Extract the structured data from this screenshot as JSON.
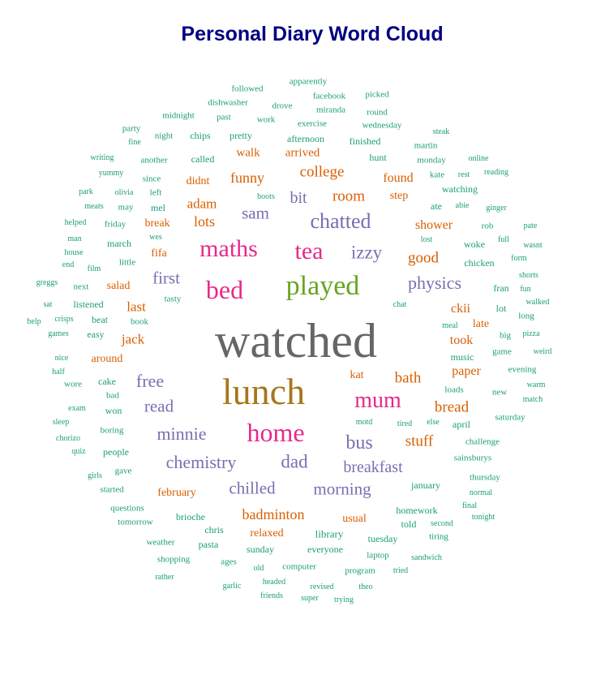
{
  "title": "Personal Diary Word Cloud",
  "colors": {
    "title": "#000080",
    "tier1": "#666666",
    "tier2": "#A6761D",
    "tier3": "#E7298A",
    "tier4": "#66A61E",
    "tier5": "#7570B3",
    "tier6": "#D95F02",
    "tier7": "#1B9E77"
  },
  "words": [
    {
      "text": "watched",
      "tier": "tier1"
    },
    {
      "text": "lunch",
      "tier": "tier2"
    },
    {
      "text": "played",
      "tier": "tier4"
    },
    {
      "text": "home",
      "tier": "tier3"
    },
    {
      "text": "bed",
      "tier": "tier3"
    },
    {
      "text": "maths",
      "tier": "tier3"
    },
    {
      "text": "tea",
      "tier": "tier3"
    },
    {
      "text": "mum",
      "tier": "tier3"
    },
    {
      "text": "chatted",
      "tier": "tier5"
    },
    {
      "text": "izzy",
      "tier": "tier5"
    },
    {
      "text": "physics",
      "tier": "tier5"
    },
    {
      "text": "bus",
      "tier": "tier5"
    },
    {
      "text": "minnie",
      "tier": "tier5"
    },
    {
      "text": "chemistry",
      "tier": "tier5"
    },
    {
      "text": "dad",
      "tier": "tier5"
    },
    {
      "text": "breakfast",
      "tier": "tier5"
    },
    {
      "text": "chilled",
      "tier": "tier5"
    },
    {
      "text": "morning",
      "tier": "tier5"
    },
    {
      "text": "free",
      "tier": "tier5"
    },
    {
      "text": "read",
      "tier": "tier5"
    },
    {
      "text": "first",
      "tier": "tier5"
    },
    {
      "text": "sam",
      "tier": "tier5"
    },
    {
      "text": "bit",
      "tier": "tier5"
    },
    {
      "text": "college",
      "tier": "tier6"
    },
    {
      "text": "room",
      "tier": "tier6"
    },
    {
      "text": "funny",
      "tier": "tier6"
    },
    {
      "text": "lots",
      "tier": "tier6"
    },
    {
      "text": "adam",
      "tier": "tier6"
    },
    {
      "text": "good",
      "tier": "tier6"
    },
    {
      "text": "bath",
      "tier": "tier6"
    },
    {
      "text": "stuff",
      "tier": "tier6"
    },
    {
      "text": "bread",
      "tier": "tier6"
    },
    {
      "text": "badminton",
      "tier": "tier6"
    },
    {
      "text": "last",
      "tier": "tier6"
    },
    {
      "text": "jack",
      "tier": "tier6"
    },
    {
      "text": "found",
      "tier": "tier6"
    },
    {
      "text": "shower",
      "tier": "tier6"
    },
    {
      "text": "took",
      "tier": "tier6"
    },
    {
      "text": "paper",
      "tier": "tier6"
    },
    {
      "text": "ckii",
      "tier": "tier6"
    },
    {
      "text": "walk",
      "tier": "tier6"
    },
    {
      "text": "arrived",
      "tier": "tier6"
    },
    {
      "text": "didnt",
      "tier": "tier6"
    },
    {
      "text": "break",
      "tier": "tier6"
    },
    {
      "text": "fifa",
      "tier": "tier6"
    },
    {
      "text": "salad",
      "tier": "tier6"
    },
    {
      "text": "around",
      "tier": "tier6"
    },
    {
      "text": "kat",
      "tier": "tier6"
    },
    {
      "text": "late",
      "tier": "tier6"
    },
    {
      "text": "february",
      "tier": "tier6"
    },
    {
      "text": "usual",
      "tier": "tier6"
    },
    {
      "text": "relaxed",
      "tier": "tier6"
    },
    {
      "text": "step",
      "tier": "tier6"
    },
    {
      "text": "followed",
      "tier": "tier7"
    },
    {
      "text": "apparently",
      "tier": "tier7"
    },
    {
      "text": "facebook",
      "tier": "tier7"
    },
    {
      "text": "picked",
      "tier": "tier7"
    },
    {
      "text": "midnight",
      "tier": "tier7"
    },
    {
      "text": "dishwasher",
      "tier": "tier7"
    },
    {
      "text": "drove",
      "tier": "tier7"
    },
    {
      "text": "miranda",
      "tier": "tier7"
    },
    {
      "text": "round",
      "tier": "tier7"
    },
    {
      "text": "past",
      "tier": "tier7"
    },
    {
      "text": "work",
      "tier": "tier7"
    },
    {
      "text": "exercise",
      "tier": "tier7"
    },
    {
      "text": "wednesday",
      "tier": "tier7"
    },
    {
      "text": "party",
      "tier": "tier7"
    },
    {
      "text": "night",
      "tier": "tier7"
    },
    {
      "text": "chips",
      "tier": "tier7"
    },
    {
      "text": "pretty",
      "tier": "tier7"
    },
    {
      "text": "afternoon",
      "tier": "tier7"
    },
    {
      "text": "finished",
      "tier": "tier7"
    },
    {
      "text": "steak",
      "tier": "tier7"
    },
    {
      "text": "fine",
      "tier": "tier7"
    },
    {
      "text": "martin",
      "tier": "tier7"
    },
    {
      "text": "writing",
      "tier": "tier7"
    },
    {
      "text": "another",
      "tier": "tier7"
    },
    {
      "text": "called",
      "tier": "tier7"
    },
    {
      "text": "hunt",
      "tier": "tier7"
    },
    {
      "text": "monday",
      "tier": "tier7"
    },
    {
      "text": "online",
      "tier": "tier7"
    },
    {
      "text": "yummy",
      "tier": "tier7"
    },
    {
      "text": "since",
      "tier": "tier7"
    },
    {
      "text": "kate",
      "tier": "tier7"
    },
    {
      "text": "rest",
      "tier": "tier7"
    },
    {
      "text": "reading",
      "tier": "tier7"
    },
    {
      "text": "park",
      "tier": "tier7"
    },
    {
      "text": "olivia",
      "tier": "tier7"
    },
    {
      "text": "left",
      "tier": "tier7"
    },
    {
      "text": "boots",
      "tier": "tier7"
    },
    {
      "text": "watching",
      "tier": "tier7"
    },
    {
      "text": "meats",
      "tier": "tier7"
    },
    {
      "text": "may",
      "tier": "tier7"
    },
    {
      "text": "mel",
      "tier": "tier7"
    },
    {
      "text": "ate",
      "tier": "tier7"
    },
    {
      "text": "abie",
      "tier": "tier7"
    },
    {
      "text": "ginger",
      "tier": "tier7"
    },
    {
      "text": "helped",
      "tier": "tier7"
    },
    {
      "text": "friday",
      "tier": "tier7"
    },
    {
      "text": "rob",
      "tier": "tier7"
    },
    {
      "text": "pate",
      "tier": "tier7"
    },
    {
      "text": "man",
      "tier": "tier7"
    },
    {
      "text": "wes",
      "tier": "tier7"
    },
    {
      "text": "lost",
      "tier": "tier7"
    },
    {
      "text": "full",
      "tier": "tier7"
    },
    {
      "text": "march",
      "tier": "tier7"
    },
    {
      "text": "woke",
      "tier": "tier7"
    },
    {
      "text": "wasnt",
      "tier": "tier7"
    },
    {
      "text": "house",
      "tier": "tier7"
    },
    {
      "text": "little",
      "tier": "tier7"
    },
    {
      "text": "form",
      "tier": "tier7"
    },
    {
      "text": "end",
      "tier": "tier7"
    },
    {
      "text": "film",
      "tier": "tier7"
    },
    {
      "text": "chicken",
      "tier": "tier7"
    },
    {
      "text": "shorts",
      "tier": "tier7"
    },
    {
      "text": "greggs",
      "tier": "tier7"
    },
    {
      "text": "next",
      "tier": "tier7"
    },
    {
      "text": "fran",
      "tier": "tier7"
    },
    {
      "text": "fun",
      "tier": "tier7"
    },
    {
      "text": "tasty",
      "tier": "tier7"
    },
    {
      "text": "sat",
      "tier": "tier7"
    },
    {
      "text": "listened",
      "tier": "tier7"
    },
    {
      "text": "chat",
      "tier": "tier7"
    },
    {
      "text": "lot",
      "tier": "tier7"
    },
    {
      "text": "walked",
      "tier": "tier7"
    },
    {
      "text": "help",
      "tier": "tier7"
    },
    {
      "text": "beat",
      "tier": "tier7"
    },
    {
      "text": "book",
      "tier": "tier7"
    },
    {
      "text": "long",
      "tier": "tier7"
    },
    {
      "text": "crisps",
      "tier": "tier7"
    },
    {
      "text": "meal",
      "tier": "tier7"
    },
    {
      "text": "games",
      "tier": "tier7"
    },
    {
      "text": "easy",
      "tier": "tier7"
    },
    {
      "text": "big",
      "tier": "tier7"
    },
    {
      "text": "pizza",
      "tier": "tier7"
    },
    {
      "text": "nice",
      "tier": "tier7"
    },
    {
      "text": "music",
      "tier": "tier7"
    },
    {
      "text": "game",
      "tier": "tier7"
    },
    {
      "text": "weird",
      "tier": "tier7"
    },
    {
      "text": "half",
      "tier": "tier7"
    },
    {
      "text": "evening",
      "tier": "tier7"
    },
    {
      "text": "wore",
      "tier": "tier7"
    },
    {
      "text": "cake",
      "tier": "tier7"
    },
    {
      "text": "warm",
      "tier": "tier7"
    },
    {
      "text": "loads",
      "tier": "tier7"
    },
    {
      "text": "bad",
      "tier": "tier7"
    },
    {
      "text": "new",
      "tier": "tier7"
    },
    {
      "text": "exam",
      "tier": "tier7"
    },
    {
      "text": "won",
      "tier": "tier7"
    },
    {
      "text": "match",
      "tier": "tier7"
    },
    {
      "text": "sleep",
      "tier": "tier7"
    },
    {
      "text": "else",
      "tier": "tier7"
    },
    {
      "text": "saturday",
      "tier": "tier7"
    },
    {
      "text": "motd",
      "tier": "tier7"
    },
    {
      "text": "tired",
      "tier": "tier7"
    },
    {
      "text": "april",
      "tier": "tier7"
    },
    {
      "text": "chorizo",
      "tier": "tier7"
    },
    {
      "text": "boring",
      "tier": "tier7"
    },
    {
      "text": "challenge",
      "tier": "tier7"
    },
    {
      "text": "quiz",
      "tier": "tier7"
    },
    {
      "text": "people",
      "tier": "tier7"
    },
    {
      "text": "sainsburys",
      "tier": "tier7"
    },
    {
      "text": "girls",
      "tier": "tier7"
    },
    {
      "text": "gave",
      "tier": "tier7"
    },
    {
      "text": "thursday",
      "tier": "tier7"
    },
    {
      "text": "started",
      "tier": "tier7"
    },
    {
      "text": "january",
      "tier": "tier7"
    },
    {
      "text": "normal",
      "tier": "tier7"
    },
    {
      "text": "questions",
      "tier": "tier7"
    },
    {
      "text": "final",
      "tier": "tier7"
    },
    {
      "text": "brioche",
      "tier": "tier7"
    },
    {
      "text": "homework",
      "tier": "tier7"
    },
    {
      "text": "tonight",
      "tier": "tier7"
    },
    {
      "text": "tomorrow",
      "tier": "tier7"
    },
    {
      "text": "chris",
      "tier": "tier7"
    },
    {
      "text": "told",
      "tier": "tier7"
    },
    {
      "text": "second",
      "tier": "tier7"
    },
    {
      "text": "weather",
      "tier": "tier7"
    },
    {
      "text": "pasta",
      "tier": "tier7"
    },
    {
      "text": "library",
      "tier": "tier7"
    },
    {
      "text": "tuesday",
      "tier": "tier7"
    },
    {
      "text": "tiring",
      "tier": "tier7"
    },
    {
      "text": "sunday",
      "tier": "tier7"
    },
    {
      "text": "everyone",
      "tier": "tier7"
    },
    {
      "text": "shopping",
      "tier": "tier7"
    },
    {
      "text": "ages",
      "tier": "tier7"
    },
    {
      "text": "laptop",
      "tier": "tier7"
    },
    {
      "text": "sandwich",
      "tier": "tier7"
    },
    {
      "text": "old",
      "tier": "tier7"
    },
    {
      "text": "computer",
      "tier": "tier7"
    },
    {
      "text": "program",
      "tier": "tier7"
    },
    {
      "text": "tried",
      "tier": "tier7"
    },
    {
      "text": "rather",
      "tier": "tier7"
    },
    {
      "text": "headed",
      "tier": "tier7"
    },
    {
      "text": "garlic",
      "tier": "tier7"
    },
    {
      "text": "revised",
      "tier": "tier7"
    },
    {
      "text": "theo",
      "tier": "tier7"
    },
    {
      "text": "friends",
      "tier": "tier7"
    },
    {
      "text": "super",
      "tier": "tier7"
    },
    {
      "text": "trying",
      "tier": "tier7"
    }
  ]
}
